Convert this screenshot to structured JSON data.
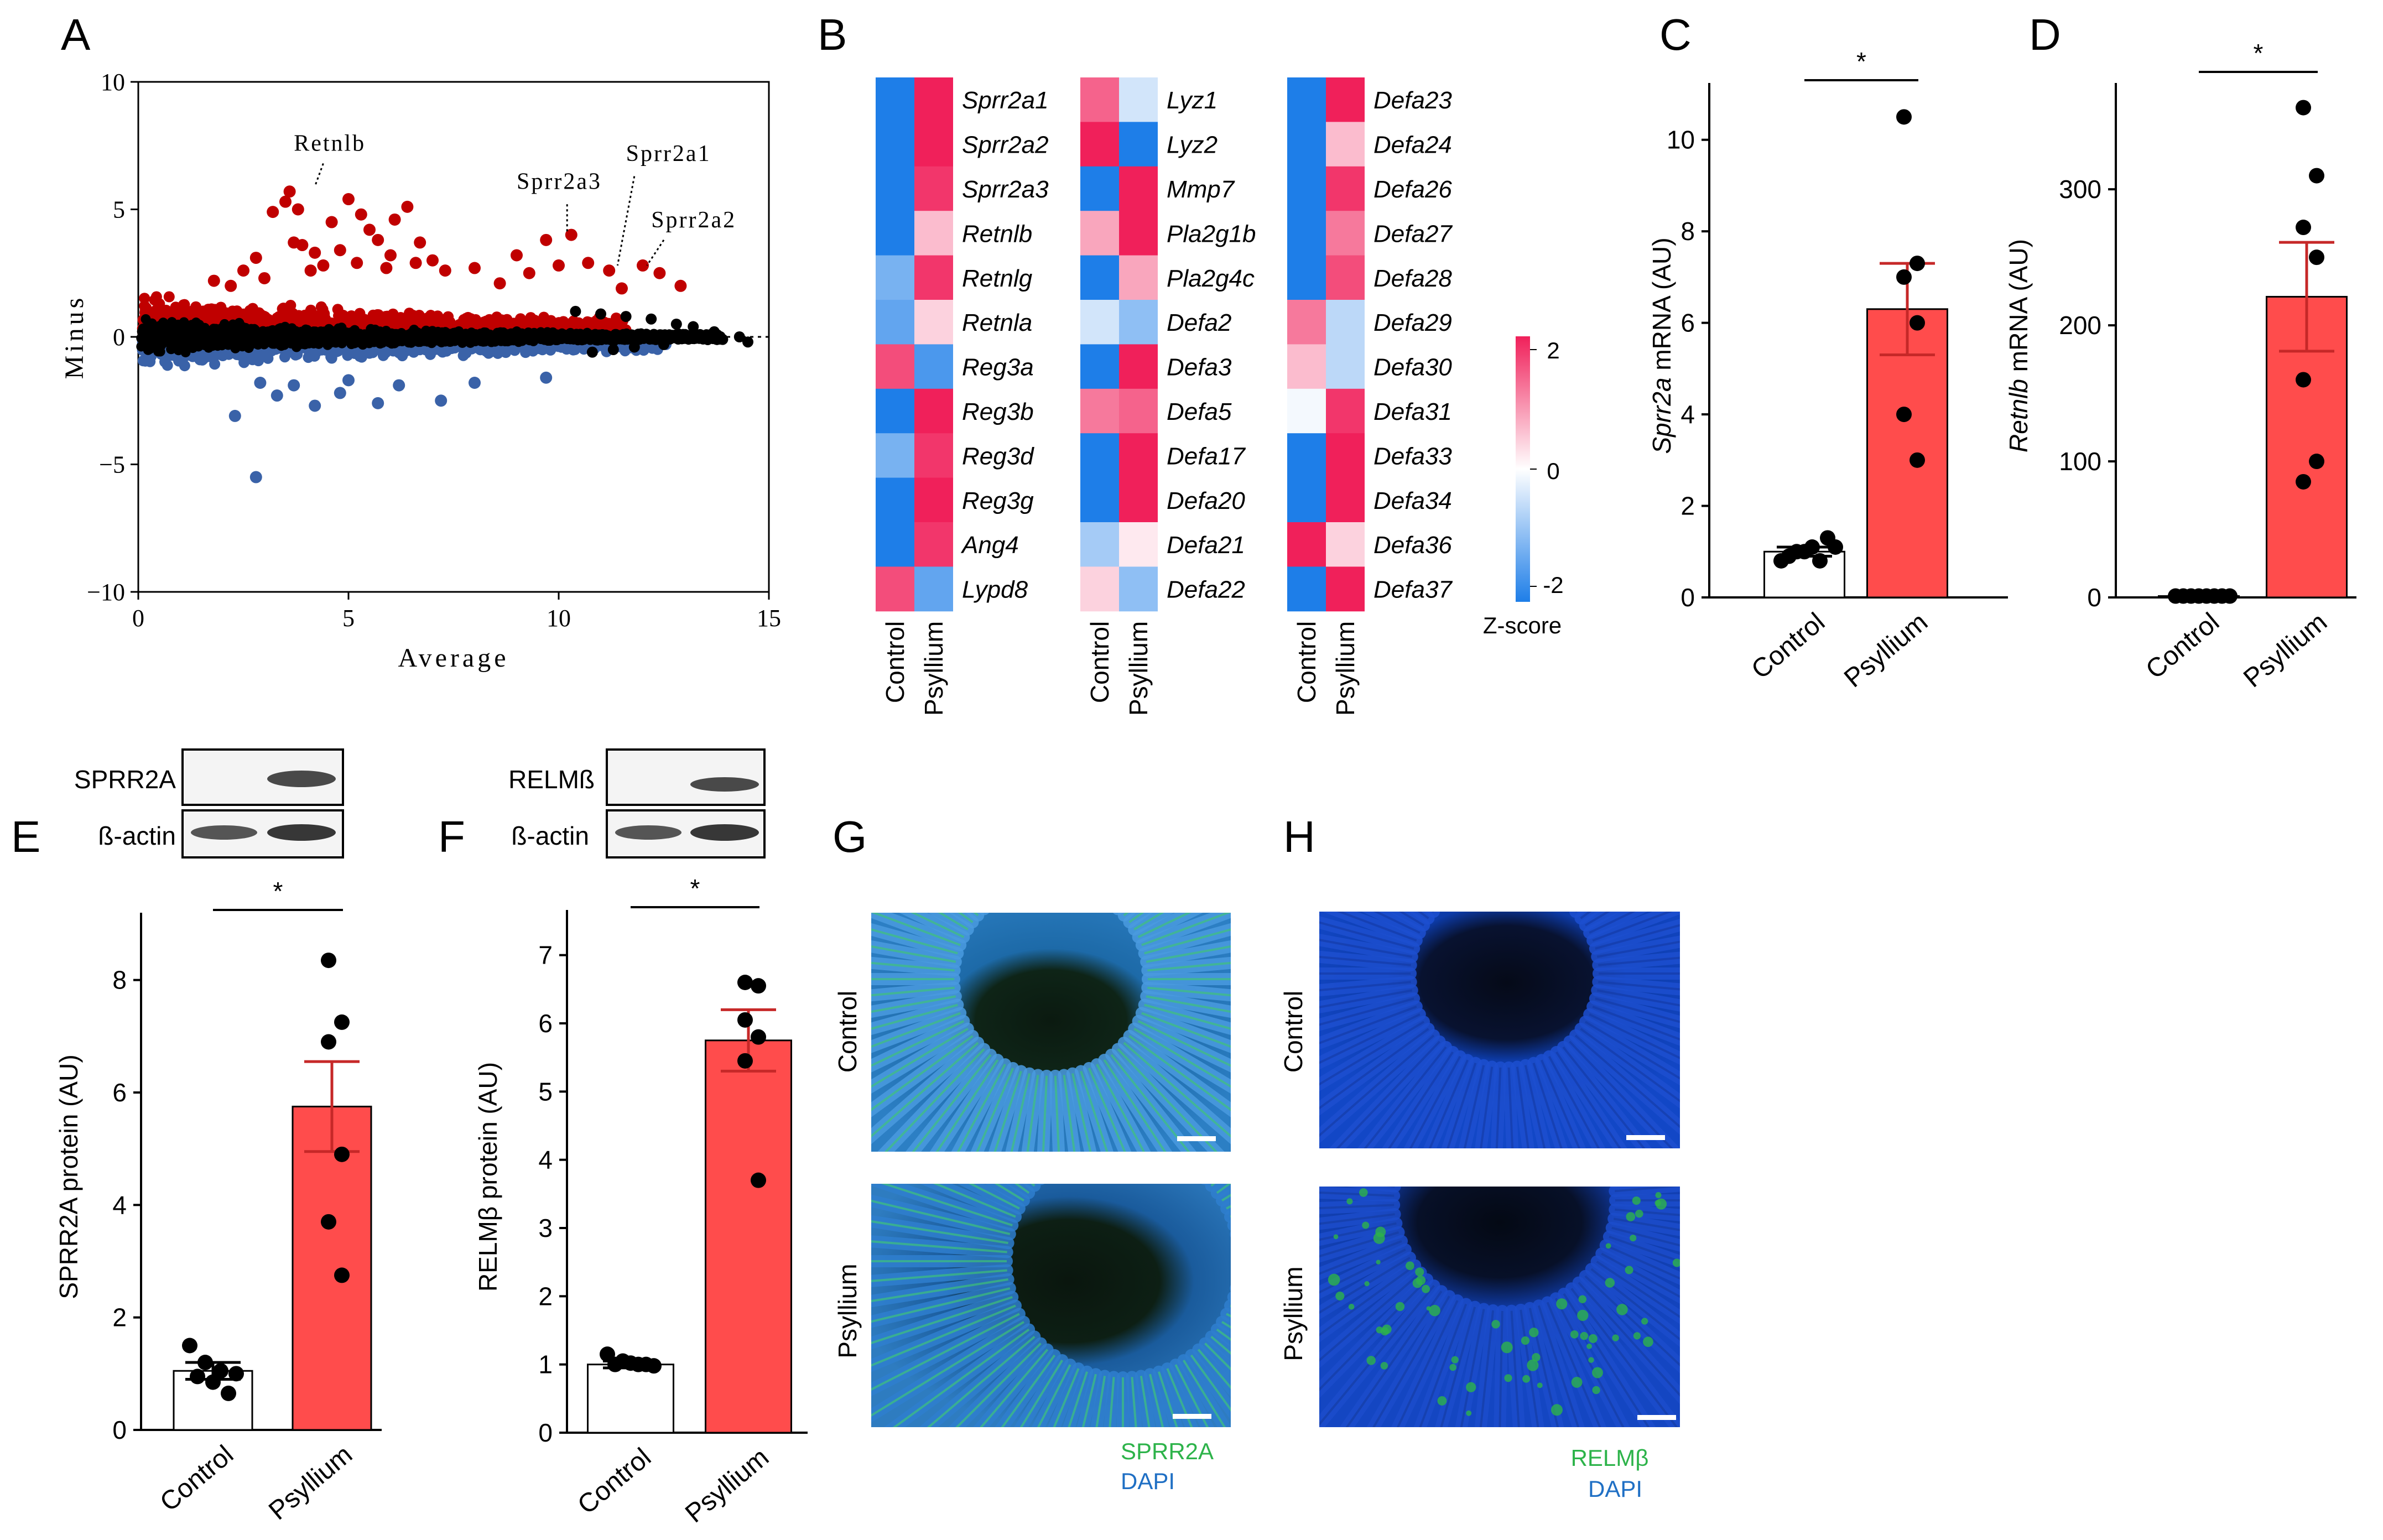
{
  "panel_letters": [
    "A",
    "B",
    "C",
    "D",
    "E",
    "F",
    "G",
    "H"
  ],
  "colors": {
    "up": "#c00000",
    "down": "#3a62a8",
    "neutral": "#000000",
    "bar_control": "#ffffff",
    "bar_psyllium": "#ff4c4c",
    "errorbar_psyllium": "#c62828",
    "heat_low": "#1e7ee8",
    "heat_mid": "#ffffff",
    "heat_high": "#f0205a",
    "stain_green": "#2db34a",
    "stain_blue": "#1f6fc4"
  },
  "chart_data": [
    {
      "id": "A",
      "type": "scatter",
      "xlabel": "Average",
      "ylabel": "Minus",
      "xlim": [
        0,
        15
      ],
      "ylim": [
        -10,
        10
      ],
      "xticks": [
        "0",
        "5",
        "10",
        "15"
      ],
      "yticks": [
        "10",
        "5",
        "0",
        "−5",
        "−10"
      ],
      "annotations": [
        {
          "label": "Retnlb",
          "x": 4.2,
          "y": 5.8
        },
        {
          "label": "Sprr2a3",
          "x": 10.2,
          "y": 3.9
        },
        {
          "label": "Sprr2a1",
          "x": 11.4,
          "y": 2.7
        },
        {
          "label": "Sprr2a2",
          "x": 12.1,
          "y": 2.7
        }
      ],
      "highlight_up": [
        [
          3.2,
          4.9
        ],
        [
          3.5,
          5.3
        ],
        [
          3.6,
          5.7
        ],
        [
          3.7,
          3.7
        ],
        [
          3.8,
          5.0
        ],
        [
          3.9,
          3.6
        ],
        [
          4.2,
          3.3
        ],
        [
          4.6,
          4.5
        ],
        [
          4.8,
          3.4
        ],
        [
          5.0,
          5.4
        ],
        [
          5.3,
          4.8
        ],
        [
          5.5,
          4.2
        ],
        [
          5.7,
          3.8
        ],
        [
          6.0,
          3.2
        ],
        [
          6.1,
          4.6
        ],
        [
          6.4,
          5.1
        ],
        [
          6.7,
          3.7
        ],
        [
          7.0,
          3.0
        ],
        [
          4.1,
          2.6
        ],
        [
          4.4,
          2.8
        ],
        [
          5.2,
          2.9
        ],
        [
          5.9,
          2.7
        ],
        [
          6.6,
          2.9
        ],
        [
          7.3,
          2.6
        ],
        [
          8.0,
          2.7
        ],
        [
          8.6,
          2.1
        ],
        [
          9.0,
          3.2
        ],
        [
          9.3,
          2.5
        ],
        [
          9.7,
          3.8
        ],
        [
          10.0,
          2.8
        ],
        [
          10.3,
          4.0
        ],
        [
          10.7,
          2.9
        ],
        [
          11.2,
          2.6
        ],
        [
          11.5,
          1.9
        ],
        [
          12.0,
          2.8
        ],
        [
          12.4,
          2.5
        ],
        [
          12.9,
          2.0
        ],
        [
          2.5,
          2.6
        ],
        [
          2.8,
          3.1
        ],
        [
          3.0,
          2.3
        ],
        [
          1.8,
          2.2
        ],
        [
          2.2,
          2.0
        ]
      ],
      "highlight_down": [
        [
          2.8,
          -5.5
        ],
        [
          2.3,
          -3.1
        ],
        [
          4.2,
          -2.7
        ],
        [
          5.7,
          -2.6
        ],
        [
          7.2,
          -2.5
        ],
        [
          9.7,
          -1.6
        ],
        [
          3.3,
          -2.3
        ],
        [
          4.8,
          -2.2
        ],
        [
          6.2,
          -1.9
        ],
        [
          8.0,
          -1.8
        ],
        [
          3.7,
          -1.9
        ],
        [
          5.0,
          -1.7
        ],
        [
          2.9,
          -1.8
        ]
      ],
      "highlight_black": [
        [
          10.4,
          1.0
        ],
        [
          11.0,
          0.9
        ],
        [
          11.6,
          0.8
        ],
        [
          12.2,
          0.7
        ],
        [
          12.8,
          0.5
        ],
        [
          13.2,
          0.4
        ],
        [
          13.7,
          0.2
        ],
        [
          14.3,
          0.0
        ],
        [
          14.5,
          -0.2
        ],
        [
          13.9,
          -0.1
        ],
        [
          12.5,
          -0.3
        ],
        [
          11.8,
          -0.4
        ],
        [
          11.3,
          -0.5
        ],
        [
          10.8,
          -0.6
        ]
      ]
    },
    {
      "id": "C",
      "type": "bar",
      "ylabel_italic": "Sprr2a",
      "ylabel_rest": " mRNA (AU)",
      "categories": [
        "Control",
        "Psyllium"
      ],
      "values": [
        1.0,
        6.3
      ],
      "sem": [
        0.1,
        1.0
      ],
      "ylim": [
        0,
        11
      ],
      "yticks": [
        0,
        2,
        4,
        6,
        8,
        10
      ],
      "points": [
        [
          0.8,
          1.0,
          1.1,
          1.3,
          0.9,
          1.0,
          0.8,
          1.1
        ],
        [
          10.5,
          7.3,
          7.0,
          6.0,
          4.0,
          3.0
        ]
      ],
      "significance": "*"
    },
    {
      "id": "D",
      "type": "bar",
      "ylabel_italic": "Retnlb",
      "ylabel_rest": " mRNA (AU)",
      "categories": [
        "Control",
        "Psyllium"
      ],
      "values": [
        1.0,
        221
      ],
      "sem": [
        0.1,
        40
      ],
      "ylim": [
        0,
        370
      ],
      "yticks": [
        0,
        100,
        200,
        300
      ],
      "points": [
        [
          1,
          1,
          1,
          1,
          1,
          1,
          1,
          1
        ],
        [
          360,
          310,
          272,
          250,
          160,
          100,
          85
        ]
      ],
      "significance": "*"
    },
    {
      "id": "E",
      "type": "bar",
      "ylabel": "SPRR2A protein (AU)",
      "categories": [
        "Control",
        "Psyllium"
      ],
      "values": [
        1.05,
        5.75
      ],
      "sem": [
        0.15,
        0.8
      ],
      "ylim": [
        0,
        9
      ],
      "yticks": [
        0,
        2,
        4,
        6,
        8
      ],
      "points": [
        [
          1.5,
          1.2,
          1.05,
          1.0,
          0.95,
          0.85,
          0.65
        ],
        [
          8.35,
          7.25,
          6.9,
          4.9,
          3.7,
          2.75
        ]
      ],
      "significance": "*"
    },
    {
      "id": "F",
      "type": "bar",
      "ylabel": "RELMβ protein (AU)",
      "categories": [
        "Control",
        "Psyllium"
      ],
      "values": [
        1.0,
        5.75
      ],
      "sem": [
        0.05,
        0.45
      ],
      "ylim": [
        0,
        7.5
      ],
      "yticks": [
        0,
        1,
        2,
        3,
        4,
        5,
        6,
        7
      ],
      "points": [
        [
          1.15,
          1.05,
          1.0,
          0.98,
          1.0,
          1.02,
          1.0
        ],
        [
          6.6,
          6.55,
          6.05,
          5.8,
          5.45,
          3.7
        ]
      ],
      "significance": "*"
    }
  ],
  "heatmap": {
    "id": "B",
    "legend_title": "Z-score",
    "legend_ticks": [
      "2",
      "0",
      "-2"
    ],
    "columns": [
      "Control",
      "Psyllium"
    ],
    "groups": [
      {
        "genes": [
          "Sprr2a1",
          "Sprr2a2",
          "Sprr2a3",
          "Retnlb",
          "Retnlg",
          "Retnla",
          "Reg3a",
          "Reg3b",
          "Reg3d",
          "Reg3g",
          "Ang4",
          "Lypd8"
        ],
        "control": [
          -1,
          -1,
          -1,
          -1,
          -0.6,
          -0.7,
          0.8,
          -1,
          -0.6,
          -1,
          -1,
          0.8
        ],
        "psyllium": [
          1,
          1,
          0.9,
          0.3,
          0.9,
          0.2,
          -0.8,
          1,
          0.9,
          1,
          0.9,
          -0.7
        ]
      },
      {
        "genes": [
          "Lyz1",
          "Lyz2",
          "Mmp7",
          "Pla2g1b",
          "Pla2g4c",
          "Defa2",
          "Defa3",
          "Defa5",
          "Defa17",
          "Defa20",
          "Defa21",
          "Defa22"
        ],
        "control": [
          0.7,
          1,
          -1,
          0.4,
          -1,
          -0.2,
          -1,
          0.6,
          -1,
          -1,
          -0.4,
          0.2
        ],
        "psyllium": [
          -0.2,
          -1,
          1,
          1,
          0.4,
          -0.5,
          1,
          0.7,
          1,
          1,
          0.1,
          -0.5
        ]
      },
      {
        "genes": [
          "Defa23",
          "Defa24",
          "Defa26",
          "Defa27",
          "Defa28",
          "Defa29",
          "Defa30",
          "Defa31",
          "Defa33",
          "Defa34",
          "Defa36",
          "Defa37"
        ],
        "control": [
          -1,
          -1,
          -1,
          -1,
          -1,
          0.6,
          0.3,
          -0.05,
          -1,
          -1,
          1,
          -1
        ],
        "psyllium": [
          1,
          0.3,
          0.9,
          0.6,
          0.8,
          -0.3,
          -0.3,
          0.9,
          1,
          1,
          0.2,
          1
        ]
      }
    ]
  },
  "blots": {
    "E": {
      "top_label": "SPRR2A",
      "bottom_label": "ß-actin"
    },
    "F": {
      "top_label": "RELMß",
      "bottom_label": "ß-actin"
    }
  },
  "micrographs": {
    "G": {
      "rows": [
        "Control",
        "Psyllium"
      ],
      "legend": [
        "SPRR2A",
        "DAPI"
      ]
    },
    "H": {
      "rows": [
        "Control",
        "Psyllium"
      ],
      "legend": [
        "RELMβ",
        "DAPI"
      ]
    }
  }
}
